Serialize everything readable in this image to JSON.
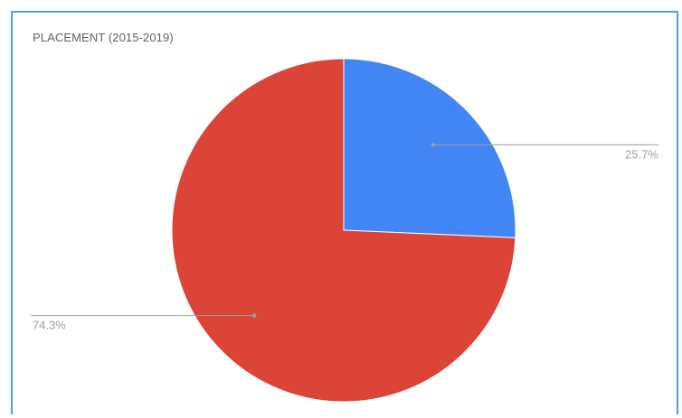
{
  "chart_data": {
    "type": "pie",
    "title": "PLACEMENT (2015-2019)",
    "categories": [
      "",
      ""
    ],
    "values": [
      25.7,
      74.3
    ],
    "labels": [
      "25.7%",
      "74.3%"
    ],
    "colors": [
      "#4285f4",
      "#db4437"
    ],
    "legend": "none",
    "start_angle_deg": 0,
    "direction": "clockwise"
  }
}
